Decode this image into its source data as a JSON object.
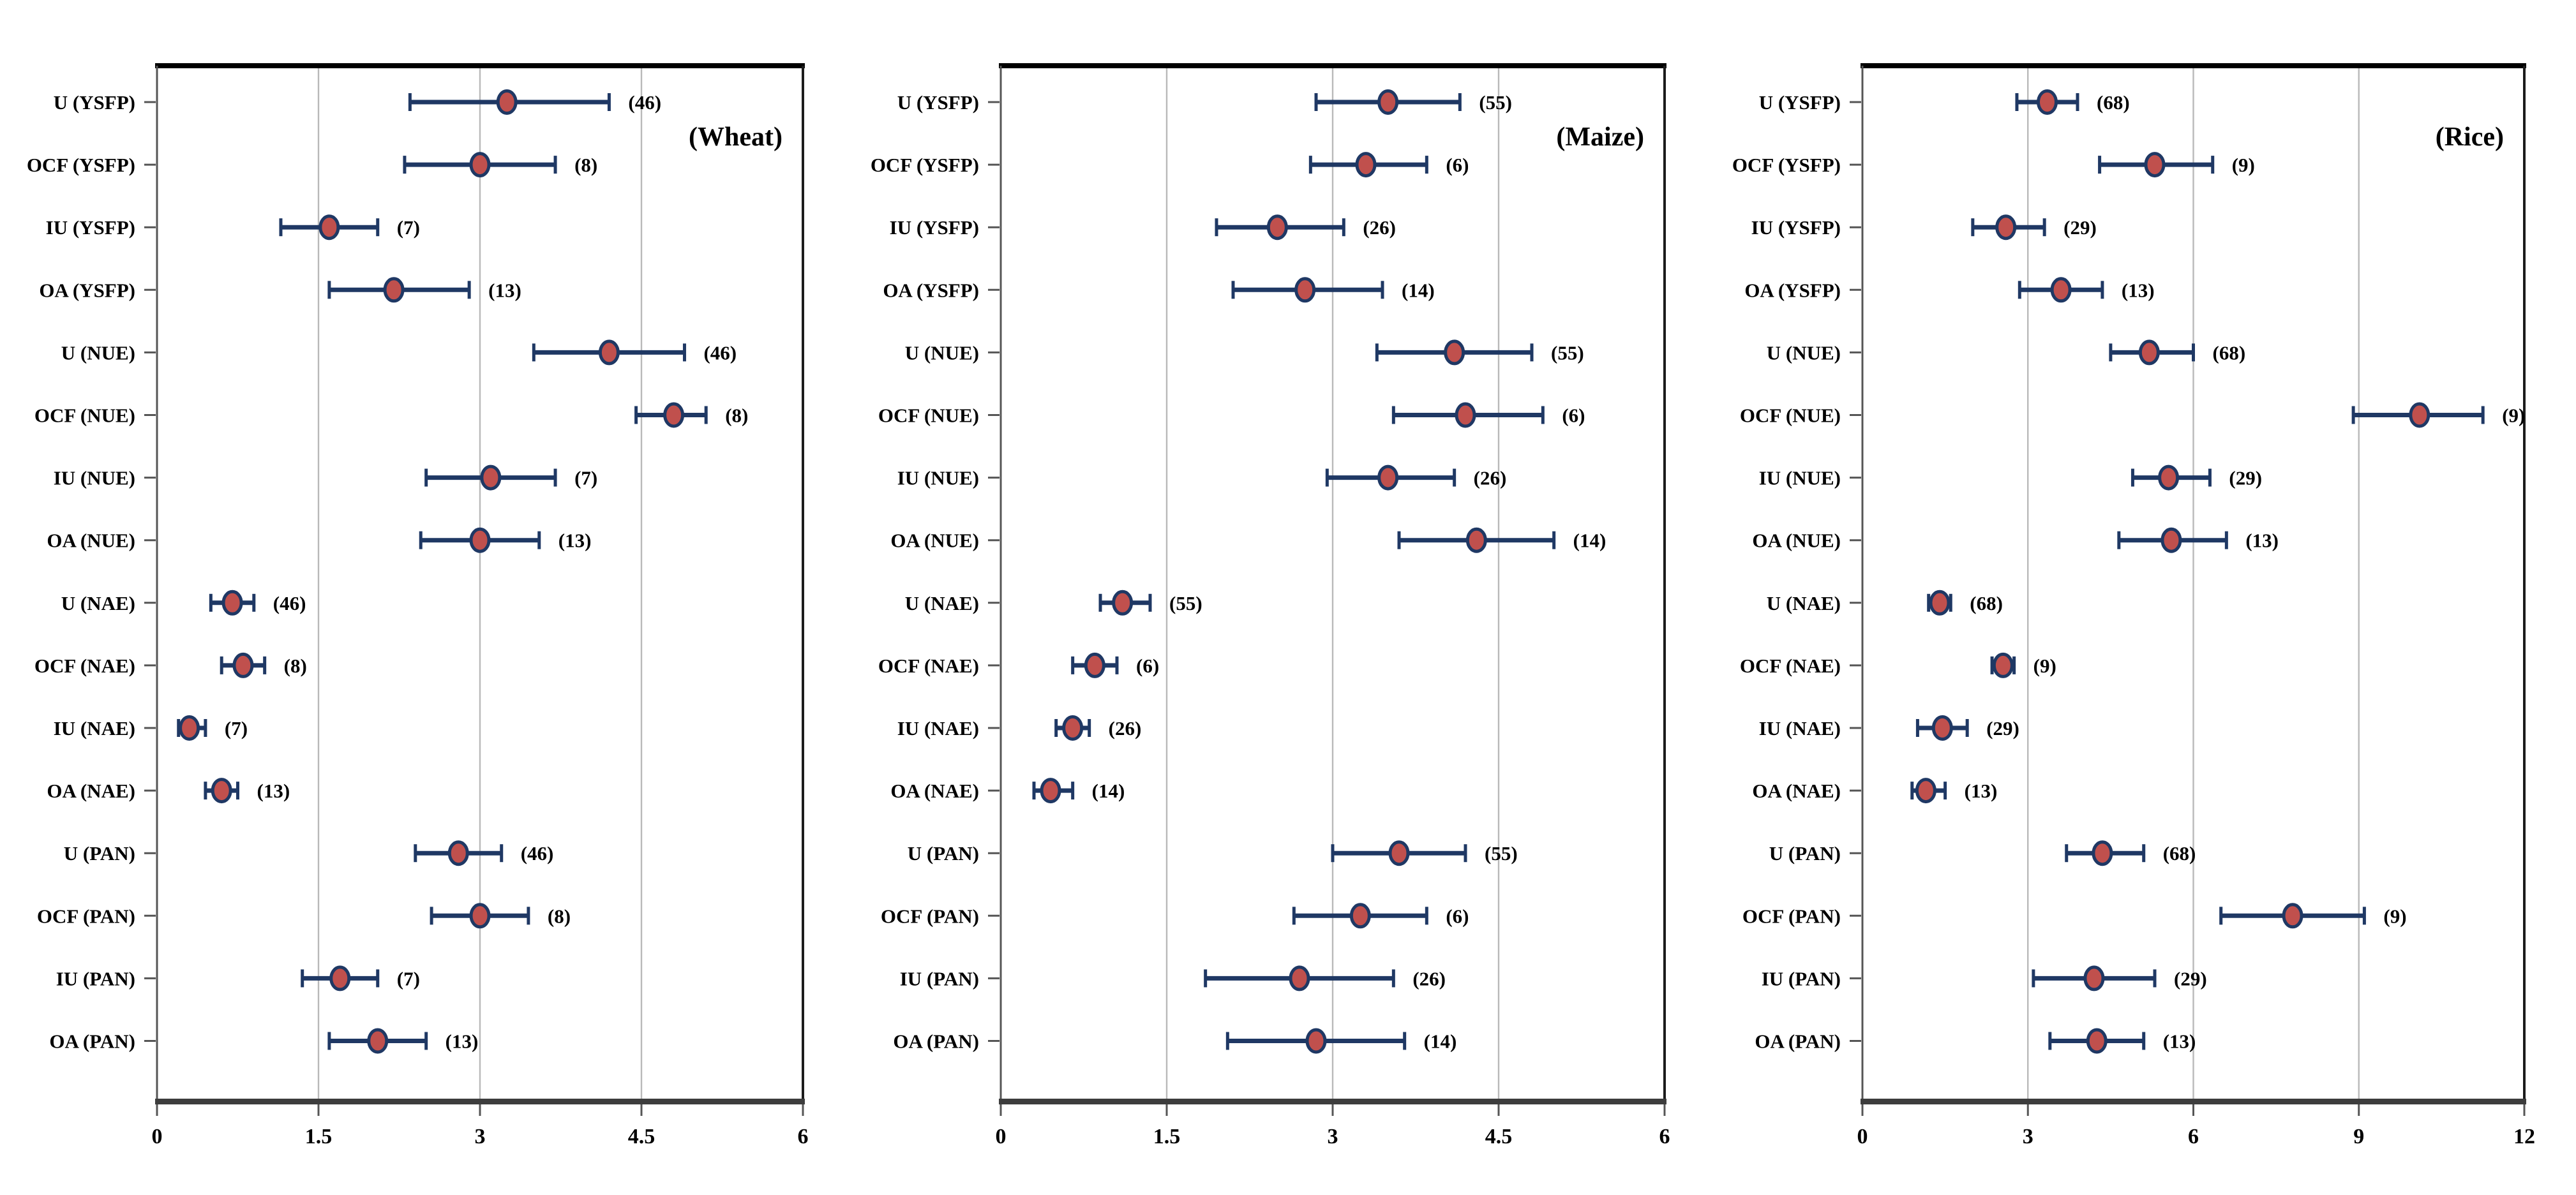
{
  "figure": {
    "background": "#ffffff",
    "colors": {
      "marker_fill": "#c0504d",
      "marker_stroke": "#1f3864",
      "error_bar": "#1f3864",
      "gridline": "#b9b9b9",
      "axis_line": "#555555",
      "border_top": "#000000",
      "border_right": "#1c1c1c",
      "border_bottom": "#3d3d3d",
      "text": "#000000"
    }
  },
  "chart_data": [
    {
      "type": "scatter",
      "variant": "forest-dot-error",
      "title": "(Wheat)",
      "xlim": [
        0,
        6
      ],
      "xticks": [
        0,
        1.5,
        3,
        4.5,
        6
      ],
      "xtick_labels": [
        "0",
        "1.5",
        "3",
        "4.5",
        "6"
      ],
      "grid": "vertical-major",
      "categories": [
        "U (YSFP)",
        "OCF (YSFP)",
        "IU (YSFP)",
        "OA (YSFP)",
        "U (NUE)",
        "OCF (NUE)",
        "IU (NUE)",
        "OA (NUE)",
        "U (NAE)",
        "OCF (NAE)",
        "IU (NAE)",
        "OA (NAE)",
        "U (PAN)",
        "OCF (PAN)",
        "IU (PAN)",
        "OA (PAN)"
      ],
      "points": [
        {
          "category": "U (YSFP)",
          "mean": 3.25,
          "ci_low": 2.35,
          "ci_high": 4.2,
          "n": 46
        },
        {
          "category": "OCF (YSFP)",
          "mean": 3.0,
          "ci_low": 2.3,
          "ci_high": 3.7,
          "n": 8
        },
        {
          "category": "IU (YSFP)",
          "mean": 1.6,
          "ci_low": 1.15,
          "ci_high": 2.05,
          "n": 7
        },
        {
          "category": "OA (YSFP)",
          "mean": 2.2,
          "ci_low": 1.6,
          "ci_high": 2.9,
          "n": 13
        },
        {
          "category": "U (NUE)",
          "mean": 4.2,
          "ci_low": 3.5,
          "ci_high": 4.9,
          "n": 46
        },
        {
          "category": "OCF (NUE)",
          "mean": 4.8,
          "ci_low": 4.45,
          "ci_high": 5.1,
          "n": 8
        },
        {
          "category": "IU (NUE)",
          "mean": 3.1,
          "ci_low": 2.5,
          "ci_high": 3.7,
          "n": 7
        },
        {
          "category": "OA (NUE)",
          "mean": 3.0,
          "ci_low": 2.45,
          "ci_high": 3.55,
          "n": 13
        },
        {
          "category": "U (NAE)",
          "mean": 0.7,
          "ci_low": 0.5,
          "ci_high": 0.9,
          "n": 46
        },
        {
          "category": "OCF (NAE)",
          "mean": 0.8,
          "ci_low": 0.6,
          "ci_high": 1.0,
          "n": 8
        },
        {
          "category": "IU (NAE)",
          "mean": 0.3,
          "ci_low": 0.2,
          "ci_high": 0.45,
          "n": 7
        },
        {
          "category": "OA (NAE)",
          "mean": 0.6,
          "ci_low": 0.45,
          "ci_high": 0.75,
          "n": 13
        },
        {
          "category": "U (PAN)",
          "mean": 2.8,
          "ci_low": 2.4,
          "ci_high": 3.2,
          "n": 46
        },
        {
          "category": "OCF (PAN)",
          "mean": 3.0,
          "ci_low": 2.55,
          "ci_high": 3.45,
          "n": 8
        },
        {
          "category": "IU (PAN)",
          "mean": 1.7,
          "ci_low": 1.35,
          "ci_high": 2.05,
          "n": 7
        },
        {
          "category": "OA (PAN)",
          "mean": 2.05,
          "ci_low": 1.6,
          "ci_high": 2.5,
          "n": 13
        }
      ]
    },
    {
      "type": "scatter",
      "variant": "forest-dot-error",
      "title": "(Maize)",
      "xlim": [
        0,
        6
      ],
      "xticks": [
        0,
        1.5,
        3,
        4.5,
        6
      ],
      "xtick_labels": [
        "0",
        "1.5",
        "3",
        "4.5",
        "6"
      ],
      "grid": "vertical-major",
      "categories": [
        "U (YSFP)",
        "OCF (YSFP)",
        "IU (YSFP)",
        "OA (YSFP)",
        "U (NUE)",
        "OCF (NUE)",
        "IU (NUE)",
        "OA (NUE)",
        "U (NAE)",
        "OCF (NAE)",
        "IU (NAE)",
        "OA (NAE)",
        "U (PAN)",
        "OCF (PAN)",
        "IU (PAN)",
        "OA (PAN)"
      ],
      "points": [
        {
          "category": "U (YSFP)",
          "mean": 3.5,
          "ci_low": 2.85,
          "ci_high": 4.15,
          "n": 55
        },
        {
          "category": "OCF (YSFP)",
          "mean": 3.3,
          "ci_low": 2.8,
          "ci_high": 3.85,
          "n": 6
        },
        {
          "category": "IU (YSFP)",
          "mean": 2.5,
          "ci_low": 1.95,
          "ci_high": 3.1,
          "n": 26
        },
        {
          "category": "OA (YSFP)",
          "mean": 2.75,
          "ci_low": 2.1,
          "ci_high": 3.45,
          "n": 14
        },
        {
          "category": "U (NUE)",
          "mean": 4.1,
          "ci_low": 3.4,
          "ci_high": 4.8,
          "n": 55
        },
        {
          "category": "OCF (NUE)",
          "mean": 4.2,
          "ci_low": 3.55,
          "ci_high": 4.9,
          "n": 6
        },
        {
          "category": "IU (NUE)",
          "mean": 3.5,
          "ci_low": 2.95,
          "ci_high": 4.1,
          "n": 26
        },
        {
          "category": "OA (NUE)",
          "mean": 4.3,
          "ci_low": 3.6,
          "ci_high": 5.0,
          "n": 14
        },
        {
          "category": "U (NAE)",
          "mean": 1.1,
          "ci_low": 0.9,
          "ci_high": 1.35,
          "n": 55
        },
        {
          "category": "OCF (NAE)",
          "mean": 0.85,
          "ci_low": 0.65,
          "ci_high": 1.05,
          "n": 6
        },
        {
          "category": "IU (NAE)",
          "mean": 0.65,
          "ci_low": 0.5,
          "ci_high": 0.8,
          "n": 26
        },
        {
          "category": "OA (NAE)",
          "mean": 0.45,
          "ci_low": 0.3,
          "ci_high": 0.65,
          "n": 14
        },
        {
          "category": "U (PAN)",
          "mean": 3.6,
          "ci_low": 3.0,
          "ci_high": 4.2,
          "n": 55
        },
        {
          "category": "OCF (PAN)",
          "mean": 3.25,
          "ci_low": 2.65,
          "ci_high": 3.85,
          "n": 6
        },
        {
          "category": "IU (PAN)",
          "mean": 2.7,
          "ci_low": 1.85,
          "ci_high": 3.55,
          "n": 26
        },
        {
          "category": "OA (PAN)",
          "mean": 2.85,
          "ci_low": 2.05,
          "ci_high": 3.65,
          "n": 14
        }
      ]
    },
    {
      "type": "scatter",
      "variant": "forest-dot-error",
      "title": "(Rice)",
      "xlim": [
        0,
        12
      ],
      "xticks": [
        0,
        3,
        6,
        9,
        12
      ],
      "xtick_labels": [
        "0",
        "3",
        "6",
        "9",
        "12"
      ],
      "grid": "vertical-major",
      "categories": [
        "U (YSFP)",
        "OCF (YSFP)",
        "IU (YSFP)",
        "OA (YSFP)",
        "U (NUE)",
        "OCF (NUE)",
        "IU (NUE)",
        "OA (NUE)",
        "U (NAE)",
        "OCF (NAE)",
        "IU (NAE)",
        "OA (NAE)",
        "U (PAN)",
        "OCF (PAN)",
        "IU (PAN)",
        "OA (PAN)"
      ],
      "points": [
        {
          "category": "U (YSFP)",
          "mean": 3.35,
          "ci_low": 2.8,
          "ci_high": 3.9,
          "n": 68
        },
        {
          "category": "OCF (YSFP)",
          "mean": 5.3,
          "ci_low": 4.3,
          "ci_high": 6.35,
          "n": 9
        },
        {
          "category": "IU (YSFP)",
          "mean": 2.6,
          "ci_low": 2.0,
          "ci_high": 3.3,
          "n": 29
        },
        {
          "category": "OA (YSFP)",
          "mean": 3.6,
          "ci_low": 2.85,
          "ci_high": 4.35,
          "n": 13
        },
        {
          "category": "U (NUE)",
          "mean": 5.2,
          "ci_low": 4.5,
          "ci_high": 6.0,
          "n": 68
        },
        {
          "category": "OCF (NUE)",
          "mean": 10.1,
          "ci_low": 8.9,
          "ci_high": 11.25,
          "n": 9
        },
        {
          "category": "IU (NUE)",
          "mean": 5.55,
          "ci_low": 4.9,
          "ci_high": 6.3,
          "n": 29
        },
        {
          "category": "OA (NUE)",
          "mean": 5.6,
          "ci_low": 4.65,
          "ci_high": 6.6,
          "n": 13
        },
        {
          "category": "U (NAE)",
          "mean": 1.4,
          "ci_low": 1.2,
          "ci_high": 1.6,
          "n": 68
        },
        {
          "category": "OCF (NAE)",
          "mean": 2.55,
          "ci_low": 2.35,
          "ci_high": 2.75,
          "n": 9
        },
        {
          "category": "IU (NAE)",
          "mean": 1.45,
          "ci_low": 1.0,
          "ci_high": 1.9,
          "n": 29
        },
        {
          "category": "OA (NAE)",
          "mean": 1.15,
          "ci_low": 0.9,
          "ci_high": 1.5,
          "n": 13
        },
        {
          "category": "U (PAN)",
          "mean": 4.35,
          "ci_low": 3.7,
          "ci_high": 5.1,
          "n": 68
        },
        {
          "category": "OCF (PAN)",
          "mean": 7.8,
          "ci_low": 6.5,
          "ci_high": 9.1,
          "n": 9
        },
        {
          "category": "IU (PAN)",
          "mean": 4.2,
          "ci_low": 3.1,
          "ci_high": 5.3,
          "n": 29
        },
        {
          "category": "OA (PAN)",
          "mean": 4.25,
          "ci_low": 3.4,
          "ci_high": 5.1,
          "n": 13
        }
      ]
    }
  ]
}
